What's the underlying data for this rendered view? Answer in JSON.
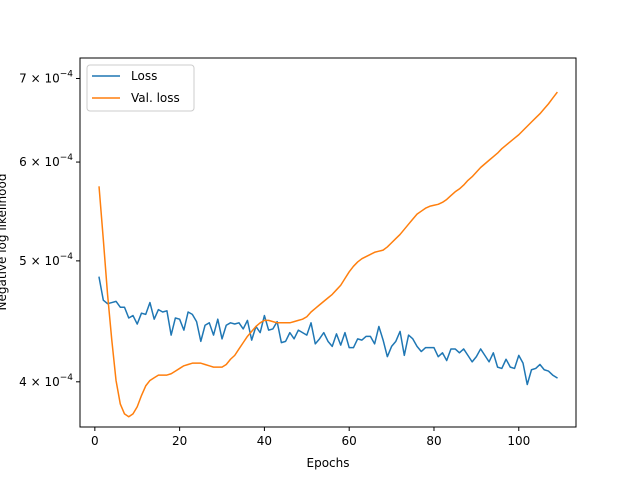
{
  "chart_data": {
    "type": "line",
    "title": "",
    "xlabel": "Epochs",
    "ylabel": "Negative log likelihood",
    "yscale": "log",
    "xlim": [
      -3.5,
      113.5
    ],
    "ylim": [
      0.000368,
      0.000727
    ],
    "grid": false,
    "legend_position": "upper-left",
    "x_ticks": [
      {
        "value": 0,
        "label": "0"
      },
      {
        "value": 20,
        "label": "20"
      },
      {
        "value": 40,
        "label": "40"
      },
      {
        "value": 60,
        "label": "60"
      },
      {
        "value": 80,
        "label": "80"
      },
      {
        "value": 100,
        "label": "100"
      }
    ],
    "y_ticks": [
      {
        "value": 0.0004,
        "mantissa": "4",
        "base": "10",
        "exponent": "−4"
      },
      {
        "value": 0.0005,
        "mantissa": "5",
        "base": "10",
        "exponent": "−4"
      },
      {
        "value": 0.0006,
        "mantissa": "6",
        "base": "10",
        "exponent": "−4"
      },
      {
        "value": 0.0007,
        "mantissa": "7",
        "base": "10",
        "exponent": "−4"
      }
    ],
    "series": [
      {
        "name": "Loss",
        "color": "#1f77b4",
        "points": [
          [
            1,
            0.000485
          ],
          [
            2,
            0.000465
          ],
          [
            3,
            0.000462
          ],
          [
            4,
            0.000463
          ],
          [
            5,
            0.000464
          ],
          [
            6,
            0.000459
          ],
          [
            7,
            0.000459
          ],
          [
            8,
            0.00045
          ],
          [
            9,
            0.000452
          ],
          [
            10,
            0.000445
          ],
          [
            11,
            0.000454
          ],
          [
            12,
            0.000453
          ],
          [
            13,
            0.000463
          ],
          [
            14,
            0.000449
          ],
          [
            15,
            0.000457
          ],
          [
            16,
            0.000455
          ],
          [
            17,
            0.000456
          ],
          [
            18,
            0.000436
          ],
          [
            19,
            0.00045
          ],
          [
            20,
            0.000449
          ],
          [
            21,
            0.00044
          ],
          [
            22,
            0.000455
          ],
          [
            23,
            0.000453
          ],
          [
            24,
            0.000447
          ],
          [
            25,
            0.000431
          ],
          [
            26,
            0.000444
          ],
          [
            27,
            0.000446
          ],
          [
            28,
            0.000436
          ],
          [
            29,
            0.000449
          ],
          [
            30,
            0.000433
          ],
          [
            31,
            0.000444
          ],
          [
            32,
            0.000446
          ],
          [
            33,
            0.000445
          ],
          [
            34,
            0.000446
          ],
          [
            35,
            0.000441
          ],
          [
            36,
            0.000448
          ],
          [
            37,
            0.000432
          ],
          [
            38,
            0.000443
          ],
          [
            39,
            0.000438
          ],
          [
            40,
            0.000452
          ],
          [
            41,
            0.00044
          ],
          [
            42,
            0.000441
          ],
          [
            43,
            0.000447
          ],
          [
            44,
            0.00043
          ],
          [
            45,
            0.000431
          ],
          [
            46,
            0.000438
          ],
          [
            47,
            0.000433
          ],
          [
            48,
            0.00044
          ],
          [
            49,
            0.000438
          ],
          [
            50,
            0.000436
          ],
          [
            51,
            0.000446
          ],
          [
            52,
            0.000429
          ],
          [
            53,
            0.000433
          ],
          [
            54,
            0.000438
          ],
          [
            55,
            0.000431
          ],
          [
            56,
            0.000427
          ],
          [
            57,
            0.000437
          ],
          [
            58,
            0.000428
          ],
          [
            59,
            0.000438
          ],
          [
            60,
            0.000426
          ],
          [
            61,
            0.000426
          ],
          [
            62,
            0.000433
          ],
          [
            63,
            0.000432
          ],
          [
            64,
            0.000435
          ],
          [
            65,
            0.000435
          ],
          [
            66,
            0.000429
          ],
          [
            67,
            0.000443
          ],
          [
            68,
            0.000432
          ],
          [
            69,
            0.000419
          ],
          [
            70,
            0.000427
          ],
          [
            71,
            0.000431
          ],
          [
            72,
            0.000439
          ],
          [
            73,
            0.00042
          ],
          [
            74,
            0.000436
          ],
          [
            75,
            0.000433
          ],
          [
            76,
            0.000427
          ],
          [
            77,
            0.000423
          ],
          [
            78,
            0.000426
          ],
          [
            79,
            0.000426
          ],
          [
            80,
            0.000426
          ],
          [
            81,
            0.000419
          ],
          [
            82,
            0.000422
          ],
          [
            83,
            0.000416
          ],
          [
            84,
            0.000425
          ],
          [
            85,
            0.000425
          ],
          [
            86,
            0.000422
          ],
          [
            87,
            0.000425
          ],
          [
            88,
            0.00042
          ],
          [
            89,
            0.000415
          ],
          [
            90,
            0.000419
          ],
          [
            91,
            0.000425
          ],
          [
            92,
            0.00042
          ],
          [
            93,
            0.000415
          ],
          [
            94,
            0.000422
          ],
          [
            95,
            0.000411
          ],
          [
            96,
            0.00041
          ],
          [
            97,
            0.000417
          ],
          [
            98,
            0.000411
          ],
          [
            99,
            0.00041
          ],
          [
            100,
            0.00042
          ],
          [
            101,
            0.000414
          ],
          [
            102,
            0.000398
          ],
          [
            103,
            0.000409
          ],
          [
            104,
            0.00041
          ],
          [
            105,
            0.000413
          ],
          [
            106,
            0.000409
          ],
          [
            107,
            0.000408
          ],
          [
            108,
            0.000405
          ],
          [
            109,
            0.000403
          ]
        ]
      },
      {
        "name": "Val. loss",
        "color": "#ff7f0e",
        "points": [
          [
            1,
            0.000573
          ],
          [
            2,
            0.00052
          ],
          [
            3,
            0.00047
          ],
          [
            4,
            0.000432
          ],
          [
            5,
            0.000401
          ],
          [
            6,
            0.000384
          ],
          [
            7,
            0.000377
          ],
          [
            8,
            0.000375
          ],
          [
            9,
            0.000377
          ],
          [
            10,
            0.000382
          ],
          [
            11,
            0.00039
          ],
          [
            12,
            0.000397
          ],
          [
            13,
            0.000401
          ],
          [
            14,
            0.000403
          ],
          [
            15,
            0.000405
          ],
          [
            16,
            0.000405
          ],
          [
            17,
            0.000405
          ],
          [
            18,
            0.000406
          ],
          [
            19,
            0.000408
          ],
          [
            20,
            0.00041
          ],
          [
            21,
            0.000412
          ],
          [
            22,
            0.000413
          ],
          [
            23,
            0.000414
          ],
          [
            24,
            0.000414
          ],
          [
            25,
            0.000414
          ],
          [
            26,
            0.000413
          ],
          [
            27,
            0.000412
          ],
          [
            28,
            0.000411
          ],
          [
            29,
            0.000411
          ],
          [
            30,
            0.000411
          ],
          [
            31,
            0.000413
          ],
          [
            32,
            0.000417
          ],
          [
            33,
            0.00042
          ],
          [
            34,
            0.000425
          ],
          [
            35,
            0.00043
          ],
          [
            36,
            0.000435
          ],
          [
            37,
            0.000439
          ],
          [
            38,
            0.000443
          ],
          [
            39,
            0.000446
          ],
          [
            40,
            0.000448
          ],
          [
            41,
            0.000448
          ],
          [
            42,
            0.000447
          ],
          [
            43,
            0.000446
          ],
          [
            44,
            0.000446
          ],
          [
            45,
            0.000446
          ],
          [
            46,
            0.000446
          ],
          [
            47,
            0.000447
          ],
          [
            48,
            0.000448
          ],
          [
            49,
            0.000449
          ],
          [
            50,
            0.000451
          ],
          [
            51,
            0.000455
          ],
          [
            52,
            0.000458
          ],
          [
            53,
            0.000461
          ],
          [
            54,
            0.000464
          ],
          [
            55,
            0.000467
          ],
          [
            56,
            0.00047
          ],
          [
            57,
            0.000474
          ],
          [
            58,
            0.000478
          ],
          [
            59,
            0.000484
          ],
          [
            60,
            0.00049
          ],
          [
            61,
            0.000495
          ],
          [
            62,
            0.000499
          ],
          [
            63,
            0.000502
          ],
          [
            64,
            0.000504
          ],
          [
            65,
            0.000506
          ],
          [
            66,
            0.000508
          ],
          [
            67,
            0.000509
          ],
          [
            68,
            0.00051
          ],
          [
            69,
            0.000513
          ],
          [
            70,
            0.000517
          ],
          [
            71,
            0.000521
          ],
          [
            72,
            0.000525
          ],
          [
            73,
            0.00053
          ],
          [
            74,
            0.000535
          ],
          [
            75,
            0.00054
          ],
          [
            76,
            0.000545
          ],
          [
            77,
            0.000548
          ],
          [
            78,
            0.000551
          ],
          [
            79,
            0.000553
          ],
          [
            80,
            0.000554
          ],
          [
            81,
            0.000555
          ],
          [
            82,
            0.000557
          ],
          [
            83,
            0.00056
          ],
          [
            84,
            0.000564
          ],
          [
            85,
            0.000568
          ],
          [
            86,
            0.000571
          ],
          [
            87,
            0.000575
          ],
          [
            88,
            0.00058
          ],
          [
            89,
            0.000584
          ],
          [
            90,
            0.000589
          ],
          [
            91,
            0.000594
          ],
          [
            92,
            0.000598
          ],
          [
            93,
            0.000602
          ],
          [
            94,
            0.000606
          ],
          [
            95,
            0.00061
          ],
          [
            96,
            0.000615
          ],
          [
            97,
            0.000619
          ],
          [
            98,
            0.000623
          ],
          [
            99,
            0.000627
          ],
          [
            100,
            0.000631
          ],
          [
            101,
            0.000636
          ],
          [
            102,
            0.000641
          ],
          [
            103,
            0.000646
          ],
          [
            104,
            0.000651
          ],
          [
            105,
            0.000656
          ],
          [
            106,
            0.000662
          ],
          [
            107,
            0.000668
          ],
          [
            108,
            0.000675
          ],
          [
            109,
            0.000682
          ]
        ]
      }
    ]
  }
}
